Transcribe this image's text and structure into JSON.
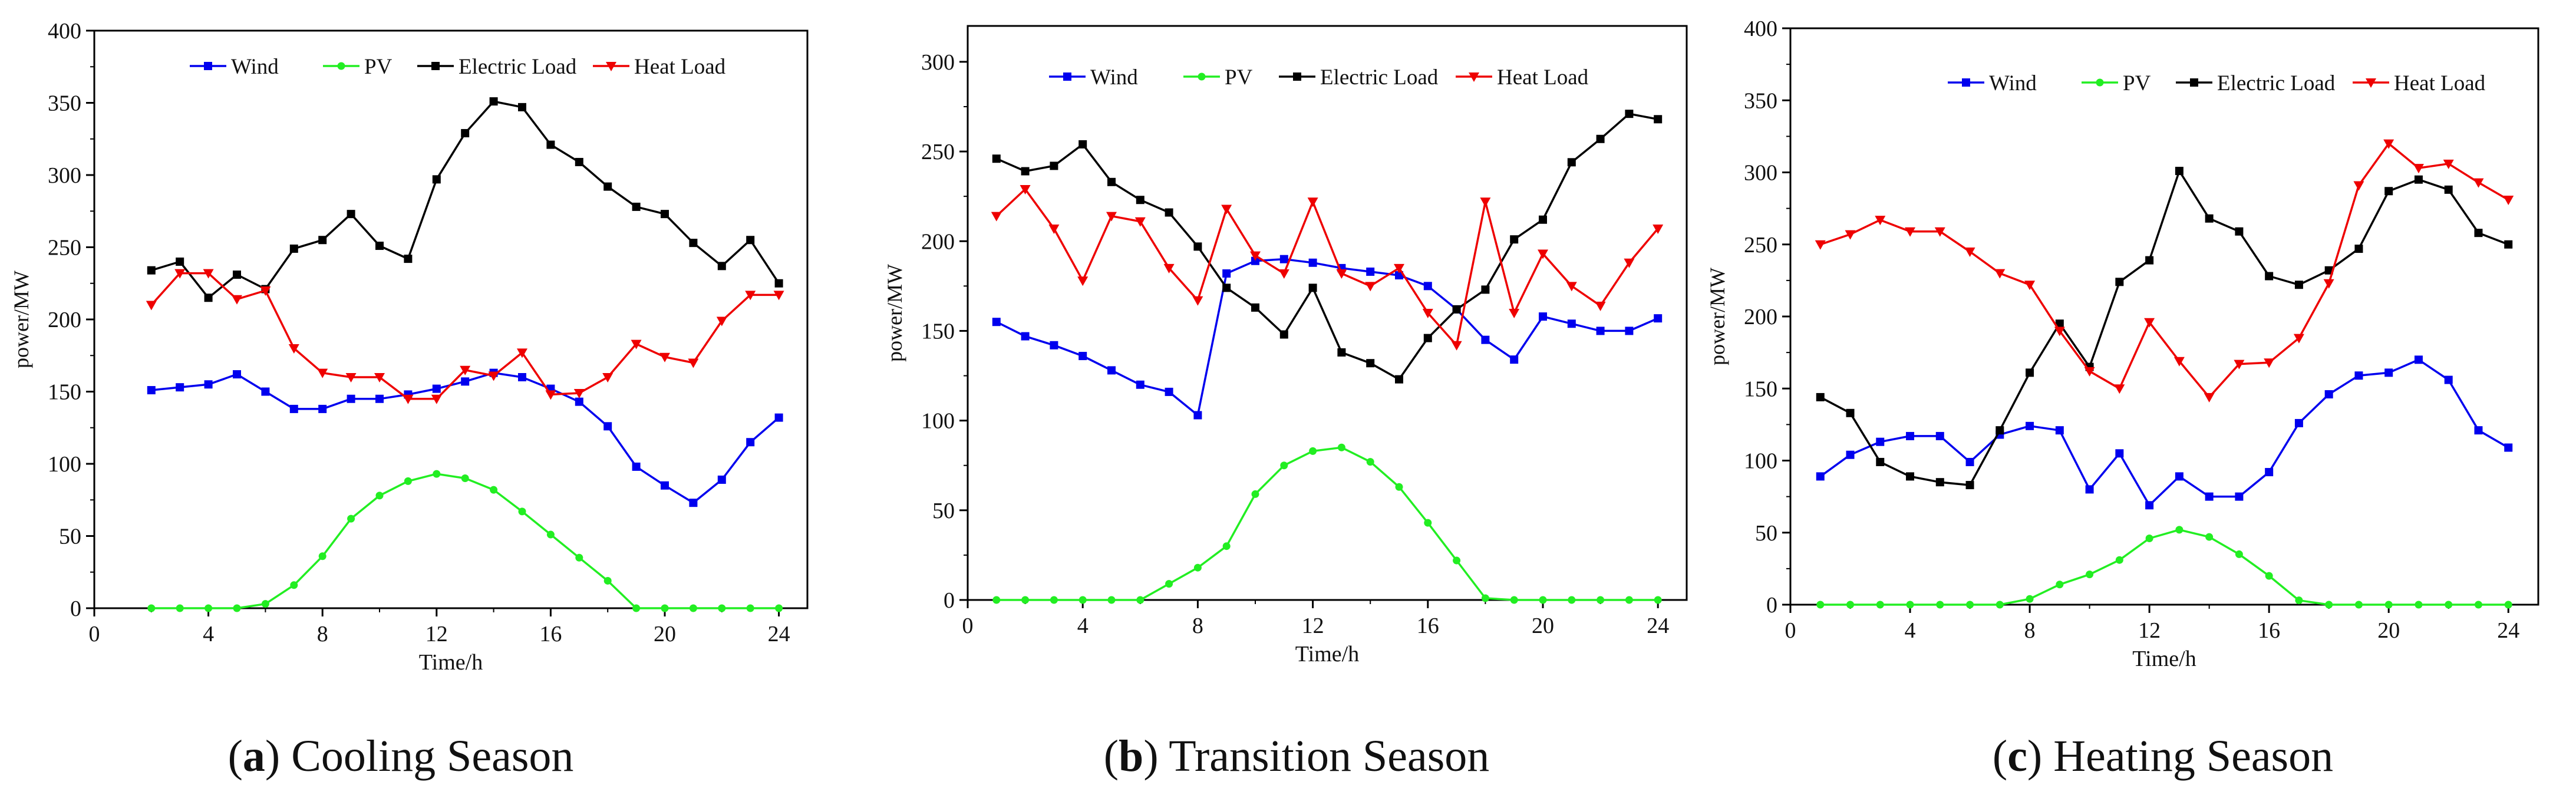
{
  "legend_labels": [
    "Wind",
    "PV",
    "Electric Load",
    "Heat Load"
  ],
  "series_colors": {
    "Wind": "#0000ee",
    "PV": "#22ee22",
    "Electric Load": "#000000",
    "Heat Load": "#ee0000"
  },
  "chart_data": [
    {
      "type": "line",
      "panel_letter": "a",
      "caption": "Cooling Season",
      "xlabel": "Time/h",
      "ylabel": "power/MW",
      "xlim": [
        0,
        25
      ],
      "ylim": [
        0,
        400
      ],
      "xticks": [
        0,
        4,
        8,
        12,
        16,
        20,
        24
      ],
      "yticks": [
        0,
        50,
        100,
        150,
        200,
        250,
        300,
        350,
        400
      ],
      "legend_position": "top",
      "series": [
        {
          "name": "Wind",
          "x": [
            2,
            3,
            4,
            5,
            6,
            7,
            8,
            9,
            10,
            11,
            12,
            13,
            14,
            15,
            16,
            17,
            18,
            19,
            20,
            21,
            22,
            23,
            24
          ],
          "values": [
            151,
            153,
            155,
            162,
            150,
            138,
            138,
            145,
            145,
            148,
            152,
            157,
            163,
            160,
            152,
            143,
            126,
            98,
            85,
            73,
            89,
            115,
            132
          ]
        },
        {
          "name": "PV",
          "x": [
            2,
            3,
            4,
            5,
            6,
            7,
            8,
            9,
            10,
            11,
            12,
            13,
            14,
            15,
            16,
            17,
            18,
            19,
            20,
            21,
            22,
            23,
            24
          ],
          "values": [
            0,
            0,
            0,
            0,
            3,
            16,
            36,
            62,
            78,
            88,
            93,
            90,
            82,
            67,
            51,
            35,
            19,
            0,
            0,
            0,
            0,
            0,
            0
          ]
        },
        {
          "name": "Electric Load",
          "x": [
            2,
            3,
            4,
            5,
            6,
            7,
            8,
            9,
            10,
            11,
            12,
            13,
            14,
            15,
            16,
            17,
            18,
            19,
            20,
            21,
            22,
            23,
            24
          ],
          "values": [
            234,
            240,
            215,
            231,
            221,
            249,
            255,
            273,
            251,
            242,
            297,
            329,
            351,
            347,
            321,
            309,
            292,
            278,
            273,
            253,
            237,
            255,
            225
          ]
        },
        {
          "name": "Heat Load",
          "x": [
            2,
            3,
            4,
            5,
            6,
            7,
            8,
            9,
            10,
            11,
            12,
            13,
            14,
            15,
            16,
            17,
            18,
            19,
            20,
            21,
            22,
            23,
            24
          ],
          "values": [
            210,
            232,
            232,
            214,
            220,
            180,
            163,
            160,
            160,
            145,
            145,
            165,
            161,
            177,
            148,
            149,
            160,
            183,
            174,
            170,
            199,
            217,
            217
          ]
        }
      ]
    },
    {
      "type": "line",
      "panel_letter": "b",
      "caption": "Transition Season",
      "xlabel": "Time/h",
      "ylabel": "power/MW",
      "xlim": [
        0,
        25
      ],
      "ylim": [
        0,
        320
      ],
      "xticks": [
        0,
        4,
        8,
        12,
        16,
        20,
        24
      ],
      "yticks": [
        0,
        50,
        100,
        150,
        200,
        250,
        300
      ],
      "legend_position": "top",
      "series": [
        {
          "name": "Wind",
          "x": [
            1,
            2,
            3,
            4,
            5,
            6,
            7,
            8,
            9,
            10,
            11,
            12,
            13,
            14,
            15,
            16,
            17,
            18,
            19,
            20,
            21,
            22,
            23,
            24
          ],
          "values": [
            155,
            147,
            142,
            136,
            128,
            120,
            116,
            103,
            182,
            189,
            190,
            188,
            185,
            183,
            181,
            175,
            162,
            145,
            134,
            158,
            154,
            150,
            150,
            157
          ]
        },
        {
          "name": "PV",
          "x": [
            1,
            2,
            3,
            4,
            5,
            6,
            7,
            8,
            9,
            10,
            11,
            12,
            13,
            14,
            15,
            16,
            17,
            18,
            19,
            20,
            21,
            22,
            23,
            24
          ],
          "values": [
            0,
            0,
            0,
            0,
            0,
            0,
            9,
            18,
            30,
            59,
            75,
            83,
            85,
            77,
            63,
            43,
            22,
            1,
            0,
            0,
            0,
            0,
            0,
            0
          ]
        },
        {
          "name": "Electric Load",
          "x": [
            1,
            2,
            3,
            4,
            5,
            6,
            7,
            8,
            9,
            10,
            11,
            12,
            13,
            14,
            15,
            16,
            17,
            18,
            19,
            20,
            21,
            22,
            23,
            24
          ],
          "values": [
            246,
            239,
            242,
            254,
            233,
            223,
            216,
            197,
            174,
            163,
            148,
            174,
            138,
            132,
            123,
            146,
            162,
            173,
            201,
            212,
            244,
            257,
            271,
            268
          ]
        },
        {
          "name": "Heat Load",
          "x": [
            1,
            2,
            3,
            4,
            5,
            6,
            7,
            8,
            9,
            10,
            11,
            12,
            13,
            14,
            15,
            16,
            17,
            18,
            19,
            20,
            21,
            22,
            23,
            24
          ],
          "values": [
            214,
            229,
            207,
            178,
            214,
            211,
            185,
            167,
            218,
            192,
            182,
            222,
            182,
            175,
            185,
            160,
            142,
            222,
            160,
            193,
            175,
            164,
            188,
            207
          ]
        }
      ]
    },
    {
      "type": "line",
      "panel_letter": "c",
      "caption": "Heating Season",
      "xlabel": "Time/h",
      "ylabel": "power/MW",
      "xlim": [
        0,
        25
      ],
      "ylim": [
        0,
        400
      ],
      "xticks": [
        0,
        4,
        8,
        12,
        16,
        20,
        24
      ],
      "yticks": [
        0,
        50,
        100,
        150,
        200,
        250,
        300,
        350,
        400
      ],
      "legend_position": "top",
      "series": [
        {
          "name": "Wind",
          "x": [
            1,
            2,
            3,
            4,
            5,
            6,
            7,
            8,
            9,
            10,
            11,
            12,
            13,
            14,
            15,
            16,
            17,
            18,
            19,
            20,
            21,
            22,
            23,
            24
          ],
          "values": [
            89,
            104,
            113,
            117,
            117,
            99,
            118,
            124,
            121,
            80,
            105,
            69,
            89,
            75,
            75,
            92,
            126,
            146,
            159,
            161,
            170,
            156,
            121,
            109
          ]
        },
        {
          "name": "PV",
          "x": [
            1,
            2,
            3,
            4,
            5,
            6,
            7,
            8,
            9,
            10,
            11,
            12,
            13,
            14,
            15,
            16,
            17,
            18,
            19,
            20,
            21,
            22,
            23,
            24
          ],
          "values": [
            0,
            0,
            0,
            0,
            0,
            0,
            0,
            4,
            14,
            21,
            31,
            46,
            52,
            47,
            35,
            20,
            3,
            0,
            0,
            0,
            0,
            0,
            0,
            0
          ]
        },
        {
          "name": "Electric Load",
          "x": [
            1,
            2,
            3,
            4,
            5,
            6,
            7,
            8,
            9,
            10,
            11,
            12,
            13,
            14,
            15,
            16,
            17,
            18,
            19,
            20,
            21,
            22,
            23,
            24
          ],
          "values": [
            144,
            133,
            99,
            89,
            85,
            83,
            121,
            161,
            195,
            165,
            224,
            239,
            301,
            268,
            259,
            228,
            222,
            232,
            247,
            287,
            295,
            288,
            258,
            250
          ]
        },
        {
          "name": "Heat Load",
          "x": [
            1,
            2,
            3,
            4,
            5,
            6,
            7,
            8,
            9,
            10,
            11,
            12,
            13,
            14,
            15,
            16,
            17,
            18,
            19,
            20,
            21,
            22,
            23,
            24
          ],
          "values": [
            250,
            257,
            267,
            259,
            259,
            245,
            230,
            222,
            190,
            162,
            150,
            196,
            169,
            144,
            167,
            168,
            185,
            223,
            291,
            320,
            303,
            306,
            293,
            281
          ]
        }
      ]
    }
  ]
}
